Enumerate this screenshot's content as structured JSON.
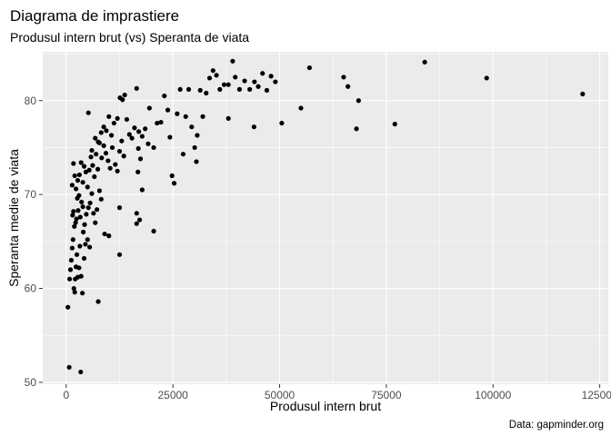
{
  "chart_data": {
    "type": "scatter",
    "title": "Diagrama de imprastiere",
    "subtitle": "Produsul intern brut (vs) Speranta de viata",
    "xlabel": "Produsul intern brut",
    "ylabel": "Speranta medie de viata",
    "caption": "Data: gapminder.org",
    "xlim": [
      -5500,
      127000
    ],
    "ylim": [
      49.8,
      85.2
    ],
    "xticks": [
      0,
      25000,
      50000,
      75000,
      100000,
      125000
    ],
    "xtick_labels": [
      "0",
      "25000",
      "50000",
      "75000",
      "100000",
      "125000"
    ],
    "yticks": [
      50,
      60,
      70,
      80
    ],
    "ytick_labels": [
      "50",
      "60",
      "70",
      "80"
    ],
    "grid": true,
    "panel_color": "#ebebeb",
    "point_color": "#000000",
    "points": [
      [
        700,
        51.6
      ],
      [
        3400,
        51.1
      ],
      [
        400,
        58.0
      ],
      [
        800,
        61.0
      ],
      [
        1000,
        62.0
      ],
      [
        1200,
        63.0
      ],
      [
        1400,
        64.3
      ],
      [
        1600,
        65.2
      ],
      [
        1800,
        60.0
      ],
      [
        2000,
        59.6
      ],
      [
        2100,
        61.0
      ],
      [
        2300,
        62.3
      ],
      [
        2500,
        63.6
      ],
      [
        2700,
        61.2
      ],
      [
        3000,
        62.2
      ],
      [
        3200,
        64.5
      ],
      [
        3500,
        61.3
      ],
      [
        3800,
        59.5
      ],
      [
        4000,
        66.0
      ],
      [
        4200,
        63.2
      ],
      [
        4500,
        64.7
      ],
      [
        5000,
        65.2
      ],
      [
        5500,
        64.4
      ],
      [
        7500,
        58.6
      ],
      [
        1500,
        67.8
      ],
      [
        1700,
        68.2
      ],
      [
        1900,
        66.6
      ],
      [
        2200,
        67.0
      ],
      [
        2400,
        67.4
      ],
      [
        2600,
        69.6
      ],
      [
        2800,
        68.3
      ],
      [
        3000,
        69.9
      ],
      [
        3300,
        67.6
      ],
      [
        3600,
        69.2
      ],
      [
        3900,
        68.7
      ],
      [
        4300,
        66.8
      ],
      [
        4700,
        67.9
      ],
      [
        5200,
        68.6
      ],
      [
        5600,
        69.1
      ],
      [
        6000,
        70.1
      ],
      [
        6400,
        68.0
      ],
      [
        6800,
        67.0
      ],
      [
        7200,
        68.4
      ],
      [
        7800,
        70.4
      ],
      [
        8200,
        69.5
      ],
      [
        9000,
        65.8
      ],
      [
        10000,
        65.6
      ],
      [
        12500,
        63.6
      ],
      [
        1400,
        71.0
      ],
      [
        1700,
        73.3
      ],
      [
        2000,
        72.0
      ],
      [
        2300,
        70.6
      ],
      [
        2700,
        71.5
      ],
      [
        3100,
        72.1
      ],
      [
        3500,
        73.4
      ],
      [
        3900,
        71.3
      ],
      [
        4200,
        73.0
      ],
      [
        4600,
        72.4
      ],
      [
        5000,
        70.8
      ],
      [
        5400,
        72.6
      ],
      [
        5800,
        74.0
      ],
      [
        6200,
        73.1
      ],
      [
        6600,
        71.9
      ],
      [
        7000,
        74.3
      ],
      [
        7400,
        72.7
      ],
      [
        7800,
        75.5
      ],
      [
        8300,
        73.9
      ],
      [
        8800,
        75.2
      ],
      [
        9300,
        74.4
      ],
      [
        9800,
        73.6
      ],
      [
        10300,
        72.8
      ],
      [
        10800,
        75.0
      ],
      [
        11500,
        73.2
      ],
      [
        12000,
        72.5
      ],
      [
        12500,
        74.6
      ],
      [
        13000,
        75.7
      ],
      [
        13500,
        74.1
      ],
      [
        5200,
        78.7
      ],
      [
        6000,
        74.7
      ],
      [
        6800,
        76.0
      ],
      [
        7500,
        75.6
      ],
      [
        8200,
        76.6
      ],
      [
        8800,
        77.2
      ],
      [
        9400,
        76.8
      ],
      [
        10000,
        78.3
      ],
      [
        10600,
        76.3
      ],
      [
        11200,
        77.6
      ],
      [
        12000,
        78.1
      ],
      [
        12600,
        80.3
      ],
      [
        13200,
        80.1
      ],
      [
        13700,
        80.6
      ],
      [
        14200,
        78.0
      ],
      [
        14800,
        76.4
      ],
      [
        15400,
        76.0
      ],
      [
        16000,
        77.1
      ],
      [
        16500,
        81.3
      ],
      [
        17000,
        76.7
      ],
      [
        17800,
        76.2
      ],
      [
        18500,
        77.0
      ],
      [
        19200,
        75.4
      ],
      [
        12500,
        68.6
      ],
      [
        16500,
        68.0
      ],
      [
        16500,
        66.9
      ],
      [
        17200,
        67.3
      ],
      [
        17800,
        70.5
      ],
      [
        20500,
        66.1
      ],
      [
        16800,
        72.4
      ],
      [
        17400,
        73.8
      ],
      [
        16900,
        74.9
      ],
      [
        19500,
        79.2
      ],
      [
        20500,
        75.0
      ],
      [
        21300,
        77.6
      ],
      [
        22200,
        77.7
      ],
      [
        23000,
        80.5
      ],
      [
        23800,
        79.0
      ],
      [
        24300,
        76.1
      ],
      [
        24800,
        72.0
      ],
      [
        25300,
        71.2
      ],
      [
        26000,
        78.6
      ],
      [
        26700,
        81.2
      ],
      [
        27400,
        74.3
      ],
      [
        28000,
        78.3
      ],
      [
        28700,
        81.2
      ],
      [
        29400,
        77.2
      ],
      [
        30100,
        75.0
      ],
      [
        30700,
        76.3
      ],
      [
        31400,
        81.1
      ],
      [
        32000,
        78.3
      ],
      [
        32800,
        80.8
      ],
      [
        33600,
        82.4
      ],
      [
        34400,
        83.2
      ],
      [
        35200,
        82.7
      ],
      [
        36000,
        81.2
      ],
      [
        37000,
        81.7
      ],
      [
        38000,
        81.7
      ],
      [
        39000,
        84.2
      ],
      [
        39600,
        82.5
      ],
      [
        40600,
        81.2
      ],
      [
        41800,
        82.1
      ],
      [
        43000,
        81.2
      ],
      [
        44100,
        82.0
      ],
      [
        45000,
        81.5
      ],
      [
        46000,
        82.9
      ],
      [
        47000,
        81.1
      ],
      [
        48000,
        82.6
      ],
      [
        49000,
        82.0
      ],
      [
        30500,
        73.5
      ],
      [
        38000,
        78.1
      ],
      [
        44000,
        77.2
      ],
      [
        50500,
        77.6
      ],
      [
        55000,
        79.2
      ],
      [
        57000,
        83.5
      ],
      [
        65000,
        82.5
      ],
      [
        66000,
        81.5
      ],
      [
        68500,
        80.0
      ],
      [
        68000,
        77.0
      ],
      [
        77000,
        77.5
      ],
      [
        84000,
        84.1
      ],
      [
        98500,
        82.4
      ],
      [
        121000,
        80.7
      ]
    ]
  }
}
